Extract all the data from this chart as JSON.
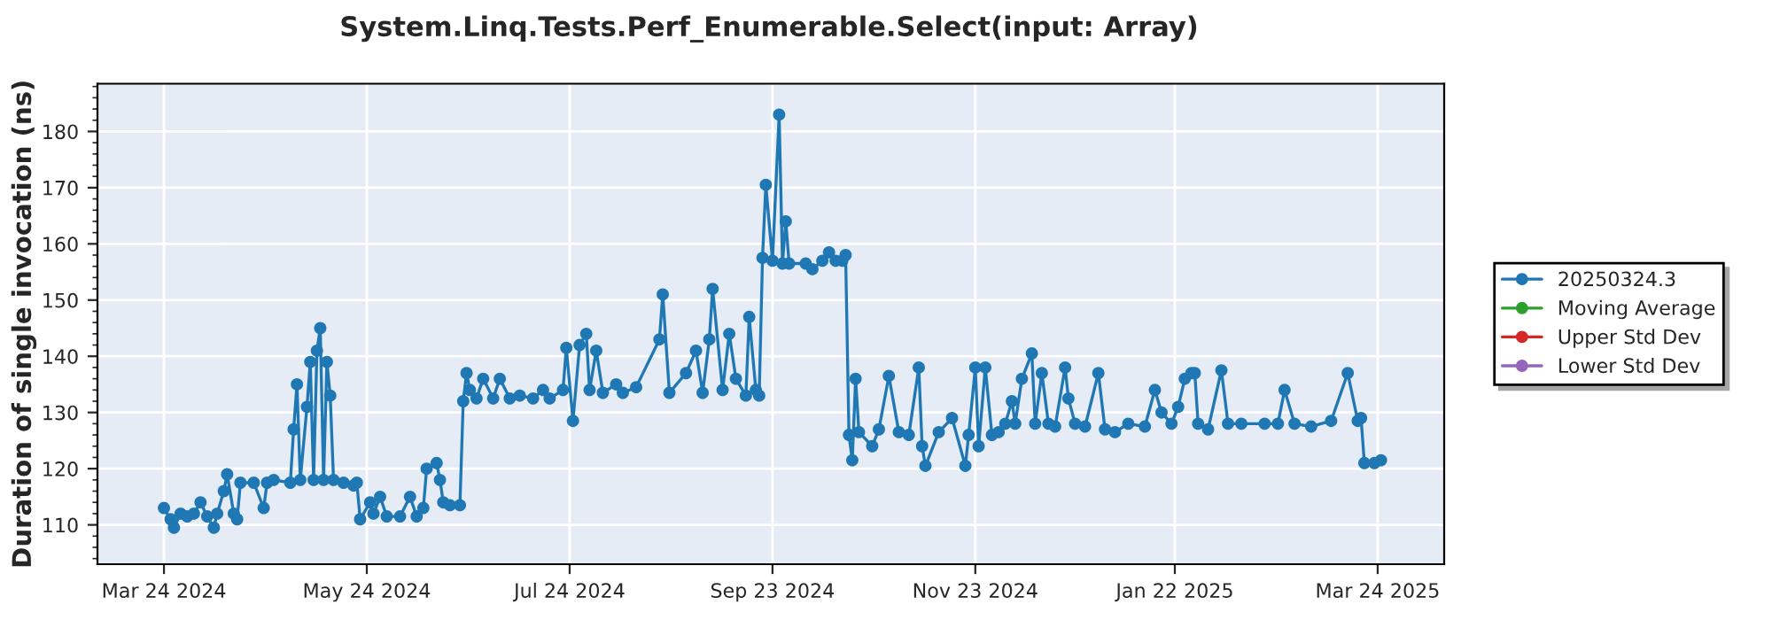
{
  "chart_data": {
    "type": "line",
    "title": "System.Linq.Tests.Perf_Enumerable.Select(input: Array)",
    "ylabel": "Duration of single invocation (ns)",
    "xlim": [
      "2024-03-04",
      "2025-04-13"
    ],
    "ylim": [
      103,
      188.5
    ],
    "xticks": [
      {
        "value": "2024-03-24",
        "label": "Mar 24 2024"
      },
      {
        "value": "2024-05-24",
        "label": "May 24 2024"
      },
      {
        "value": "2024-07-24",
        "label": "Jul 24 2024"
      },
      {
        "value": "2024-09-23",
        "label": "Sep 23 2024"
      },
      {
        "value": "2024-11-23",
        "label": "Nov 23 2024"
      },
      {
        "value": "2025-01-22",
        "label": "Jan 22 2025"
      },
      {
        "value": "2025-03-24",
        "label": "Mar 24 2025"
      }
    ],
    "yticks": [
      110,
      120,
      130,
      140,
      150,
      160,
      170,
      180
    ],
    "grid": true,
    "legend": "right",
    "marker": "circle",
    "line_style": "solid",
    "series": [
      {
        "name": "20250324.3",
        "color": "#1f77b4",
        "x": [
          "2024-03-24",
          "2024-03-26",
          "2024-03-27",
          "2024-03-29",
          "2024-03-31",
          "2024-04-02",
          "2024-04-04",
          "2024-04-06",
          "2024-04-08",
          "2024-04-09",
          "2024-04-11",
          "2024-04-12",
          "2024-04-14",
          "2024-04-15",
          "2024-04-16",
          "2024-04-20",
          "2024-04-23",
          "2024-04-24",
          "2024-04-26",
          "2024-05-01",
          "2024-05-02",
          "2024-05-03",
          "2024-05-04",
          "2024-05-06",
          "2024-05-07",
          "2024-05-08",
          "2024-05-09",
          "2024-05-10",
          "2024-05-11",
          "2024-05-12",
          "2024-05-13",
          "2024-05-14",
          "2024-05-17",
          "2024-05-20",
          "2024-05-21",
          "2024-05-22",
          "2024-05-25",
          "2024-05-26",
          "2024-05-28",
          "2024-05-30",
          "2024-06-03",
          "2024-06-06",
          "2024-06-08",
          "2024-06-10",
          "2024-06-11",
          "2024-06-14",
          "2024-06-15",
          "2024-06-16",
          "2024-06-18",
          "2024-06-21",
          "2024-06-22",
          "2024-06-23",
          "2024-06-24",
          "2024-06-26",
          "2024-06-28",
          "2024-07-01",
          "2024-07-03",
          "2024-07-06",
          "2024-07-09",
          "2024-07-13",
          "2024-07-16",
          "2024-07-18",
          "2024-07-22",
          "2024-07-23",
          "2024-07-25",
          "2024-07-27",
          "2024-07-29",
          "2024-07-30",
          "2024-08-01",
          "2024-08-03",
          "2024-08-07",
          "2024-08-09",
          "2024-08-13",
          "2024-08-20",
          "2024-08-21",
          "2024-08-23",
          "2024-08-28",
          "2024-08-31",
          "2024-09-02",
          "2024-09-04",
          "2024-09-05",
          "2024-09-08",
          "2024-09-10",
          "2024-09-12",
          "2024-09-15",
          "2024-09-16",
          "2024-09-18",
          "2024-09-19",
          "2024-09-20",
          "2024-09-21",
          "2024-09-23",
          "2024-09-25",
          "2024-09-26",
          "2024-09-27",
          "2024-09-28",
          "2024-10-03",
          "2024-10-05",
          "2024-10-08",
          "2024-10-10",
          "2024-10-12",
          "2024-10-14",
          "2024-10-15",
          "2024-10-16",
          "2024-10-17",
          "2024-10-18",
          "2024-10-19",
          "2024-10-23",
          "2024-10-25",
          "2024-10-28",
          "2024-10-31",
          "2024-11-03",
          "2024-11-06",
          "2024-11-07",
          "2024-11-08",
          "2024-11-12",
          "2024-11-16",
          "2024-11-20",
          "2024-11-21",
          "2024-11-23",
          "2024-11-24",
          "2024-11-26",
          "2024-11-28",
          "2024-11-30",
          "2024-12-02",
          "2024-12-04",
          "2024-12-05",
          "2024-12-07",
          "2024-12-10",
          "2024-12-11",
          "2024-12-13",
          "2024-12-15",
          "2024-12-17",
          "2024-12-20",
          "2024-12-21",
          "2024-12-23",
          "2024-12-26",
          "2024-12-30",
          "2025-01-01",
          "2025-01-04",
          "2025-01-08",
          "2025-01-13",
          "2025-01-16",
          "2025-01-18",
          "2025-01-21",
          "2025-01-23",
          "2025-01-25",
          "2025-01-27",
          "2025-01-28",
          "2025-01-29",
          "2025-02-01",
          "2025-02-05",
          "2025-02-07",
          "2025-02-11",
          "2025-02-18",
          "2025-02-22",
          "2025-02-24",
          "2025-02-27",
          "2025-03-04",
          "2025-03-10",
          "2025-03-15",
          "2025-03-18",
          "2025-03-19",
          "2025-03-20",
          "2025-03-23",
          "2025-03-25"
        ],
        "values": [
          113,
          111,
          109.5,
          112,
          111.5,
          112,
          114,
          111.5,
          109.5,
          112,
          116,
          119,
          112,
          111,
          117.5,
          117.5,
          113,
          117.5,
          118,
          117.5,
          127,
          135,
          118,
          131,
          139,
          118,
          141,
          145,
          118,
          139,
          133,
          118,
          117.5,
          117,
          117.5,
          111,
          114,
          112,
          115,
          111.5,
          111.5,
          115,
          111.5,
          113,
          120,
          121,
          118,
          114,
          113.5,
          113.5,
          132,
          137,
          134,
          132.5,
          136,
          132.5,
          136,
          132.5,
          133,
          132.5,
          134,
          132.5,
          134,
          141.5,
          128.5,
          142,
          144,
          134,
          141,
          133.5,
          135,
          133.5,
          134.5,
          143,
          151,
          133.5,
          137,
          141,
          133.5,
          143,
          152,
          134,
          144,
          136,
          133,
          147,
          134,
          133,
          157.5,
          170.5,
          157,
          183,
          156.5,
          164,
          156.5,
          156.5,
          155.5,
          157,
          158.5,
          157,
          157,
          158,
          126,
          121.5,
          136,
          126.5,
          124,
          127,
          136.5,
          126.5,
          126,
          138,
          124,
          120.5,
          126.5,
          129,
          120.5,
          126,
          138,
          124,
          138,
          126,
          126.5,
          128,
          132,
          128,
          136,
          140.5,
          128,
          137,
          128,
          127.5,
          138,
          132.5,
          128,
          127.5,
          137,
          127,
          126.5,
          128,
          127.5,
          134,
          130,
          128,
          131,
          136,
          137,
          137,
          128,
          127,
          137.5,
          128,
          128,
          128,
          128,
          134,
          128,
          127.5,
          128.5,
          137,
          128.5,
          129,
          121,
          121,
          121.5
        ]
      },
      {
        "name": "Moving Average",
        "color": "#2ca02c"
      },
      {
        "name": "Upper Std Dev",
        "color": "#d62728"
      },
      {
        "name": "Lower Std Dev",
        "color": "#9467bd"
      }
    ]
  }
}
